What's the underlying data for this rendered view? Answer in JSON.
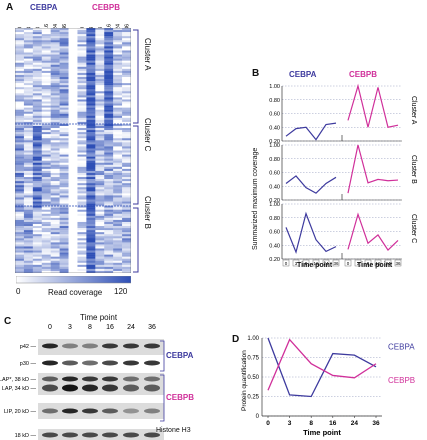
{
  "panels": {
    "a": "A",
    "b": "B",
    "c": "C",
    "d": "D"
  },
  "heatmap": {
    "cebpa_label": "CEBPA",
    "cebpb_label": "CEBPB",
    "cluster_a": "Cluster A",
    "cluster_c": "Cluster C",
    "cluster_b": "Cluster B",
    "scale_min": "0",
    "scale_label": "Read coverage",
    "scale_max": "120",
    "colors": {
      "low": "#ffffff",
      "high": "#2e4fb6"
    }
  },
  "panel_b": {
    "ylabel": "Summarized maximum coverage",
    "xlabel": "Time point",
    "cebpa_label": "CEBPA",
    "cebpb_label": "CEBPB",
    "yticks": [
      "1.00",
      "0.80",
      "0.60",
      "0.40",
      "0.20"
    ],
    "time_ticks": [
      "0",
      "3",
      "8",
      "16",
      "24",
      "36"
    ],
    "clusters": [
      "Cluster A",
      "Cluster B",
      "Cluster C"
    ],
    "colors": {
      "cebpa": "#3d3a9e",
      "cebpb": "#d0309a"
    }
  },
  "panel_c": {
    "title": "Time point",
    "time_ticks": [
      "0",
      "3",
      "8",
      "16",
      "24",
      "36"
    ],
    "rows": [
      "p42",
      "p30",
      "LAP*, 38 kD",
      "LAP, 34 kD",
      "LIP, 20 kD",
      "18 kD"
    ],
    "cebpa_label": "CEBPA",
    "cebpb_label": "CEBPB",
    "histone_label": "Histone H3"
  },
  "chart_data": [
    {
      "type": "line",
      "panel": "B",
      "xlabel": "Time point",
      "ylabel": "Summarized maximum coverage",
      "x": [
        "0",
        "3",
        "8",
        "16",
        "24",
        "36"
      ],
      "ylim": [
        0.2,
        1.0
      ],
      "clusters": [
        {
          "name": "Cluster A",
          "series": [
            {
              "name": "CEBPA",
              "values": [
                0.27,
                0.38,
                0.4,
                0.22,
                0.44,
                0.46
              ]
            },
            {
              "name": "CEBPB",
              "values": [
                0.5,
                1.0,
                0.4,
                0.98,
                0.4,
                0.43
              ]
            }
          ]
        },
        {
          "name": "Cluster B",
          "series": [
            {
              "name": "CEBPA",
              "values": [
                0.44,
                0.55,
                0.38,
                0.3,
                0.44,
                0.53
              ]
            },
            {
              "name": "CEBPB",
              "values": [
                0.3,
                1.0,
                0.45,
                0.5,
                0.48,
                0.49
              ]
            }
          ]
        },
        {
          "name": "Cluster C",
          "series": [
            {
              "name": "CEBPA",
              "values": [
                0.66,
                0.3,
                0.86,
                0.48,
                0.31,
                0.38
              ]
            },
            {
              "name": "CEBPB",
              "values": [
                0.34,
                0.85,
                0.43,
                0.55,
                0.33,
                0.47
              ]
            }
          ]
        }
      ]
    },
    {
      "type": "line",
      "panel": "D",
      "xlabel": "Time point",
      "ylabel": "Protein quantification",
      "x": [
        "0",
        "3",
        "8",
        "16",
        "24",
        "36"
      ],
      "ylim": [
        0,
        1.0
      ],
      "yticks": [
        "0",
        "0.25",
        "0.50",
        "0.75",
        "1.00"
      ],
      "series": [
        {
          "name": "CEBPA",
          "color": "#3d3a9e",
          "values": [
            1.0,
            0.27,
            0.25,
            0.8,
            0.78,
            0.63
          ]
        },
        {
          "name": "CEBPB",
          "color": "#d0309a",
          "values": [
            0.33,
            0.98,
            0.67,
            0.52,
            0.49,
            0.67
          ]
        }
      ]
    }
  ]
}
